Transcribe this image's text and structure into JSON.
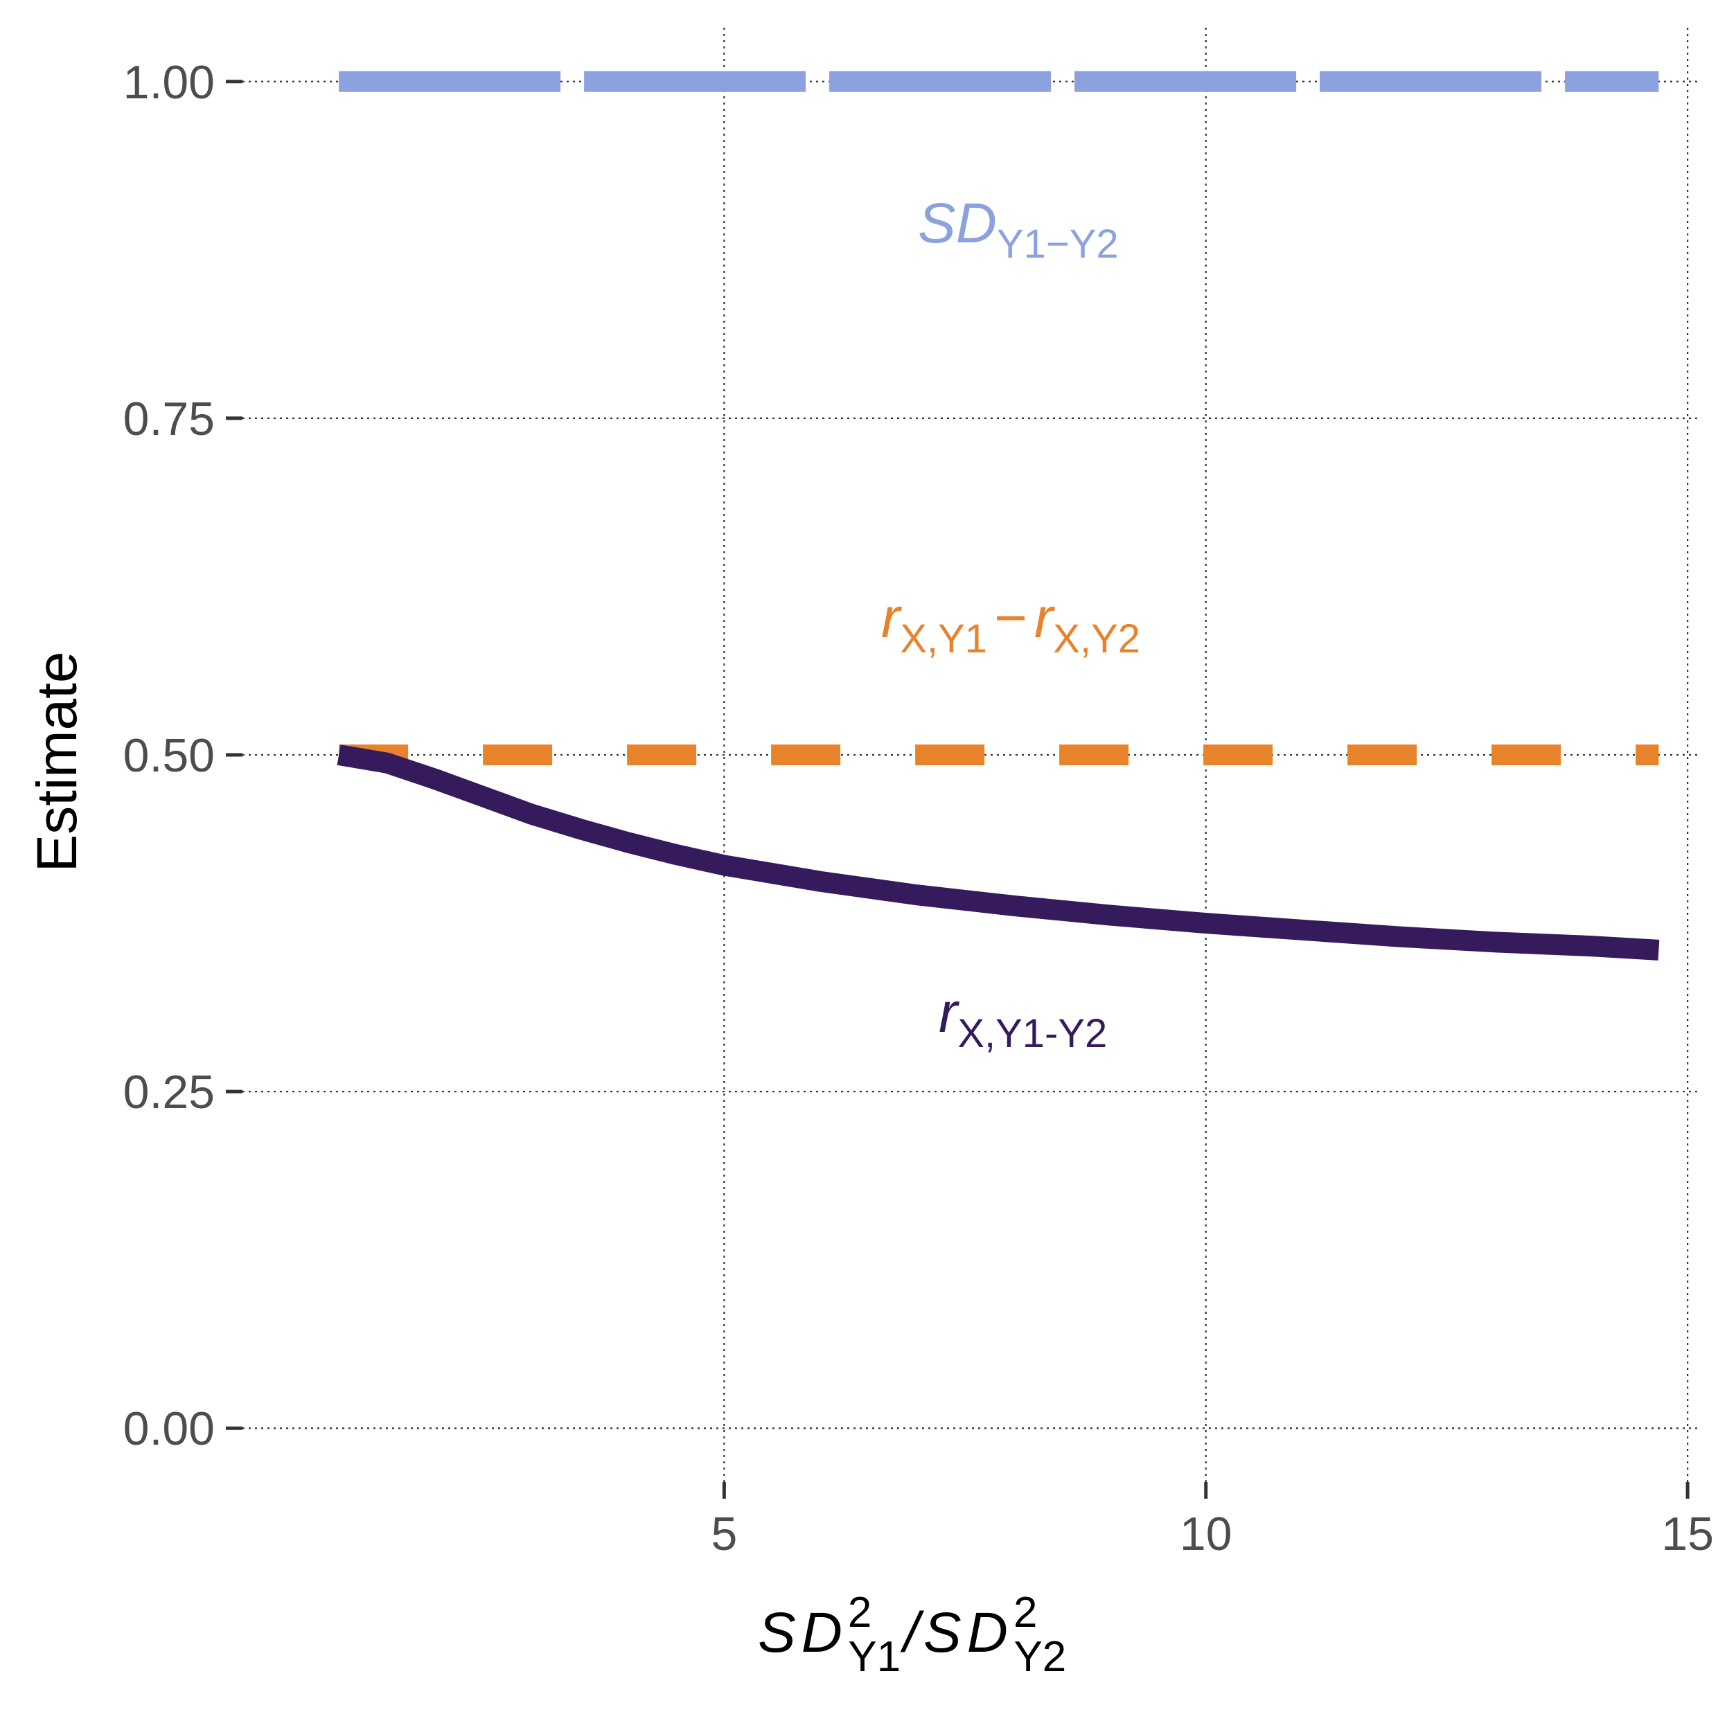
{
  "chart_data": {
    "type": "line",
    "xlabel": {
      "sd1": "SD",
      "sup1": "2",
      "sub1": "Y1",
      "slash": "/",
      "sd2": "SD",
      "sup2": "2",
      "sub2": "Y2"
    },
    "ylabel": "Estimate",
    "xlim": [
      0,
      15.1
    ],
    "ylim": [
      -0.04,
      1.04
    ],
    "x_ticks": [
      5,
      10,
      15
    ],
    "x_tick_labels": [
      "5",
      "10",
      "15"
    ],
    "y_ticks": [
      0,
      0.25,
      0.5,
      0.75,
      1.0
    ],
    "y_tick_labels": [
      "0.00",
      "0.25",
      "0.50",
      "0.75",
      "1.00"
    ],
    "grid": true,
    "legend": "none",
    "series": [
      {
        "id": "sd_diff",
        "color": "#8ba2de",
        "linestyle": "longdash",
        "label": {
          "main": "SD",
          "sub": "Y1−Y2"
        },
        "points": [
          [
            1,
            1.0
          ],
          [
            14.7,
            1.0
          ]
        ]
      },
      {
        "id": "r_diff",
        "color": "#e6832b",
        "linestyle": "dashed",
        "label": {
          "r1": "r",
          "sub1": "X,Y1",
          "minus": "−",
          "r2": "r",
          "sub2": "X,Y2"
        },
        "points": [
          [
            1,
            0.5
          ],
          [
            14.7,
            0.5
          ]
        ]
      },
      {
        "id": "r_change",
        "color": "#351a5c",
        "linestyle": "solid",
        "label": {
          "r": "r",
          "sub": "X,Y1-Y2"
        },
        "points": [
          [
            1,
            0.5
          ],
          [
            1.5,
            0.494
          ],
          [
            2,
            0.482
          ],
          [
            2.5,
            0.469
          ],
          [
            3,
            0.456
          ],
          [
            3.5,
            0.445
          ],
          [
            4,
            0.435
          ],
          [
            4.5,
            0.426
          ],
          [
            5,
            0.418
          ],
          [
            6,
            0.406
          ],
          [
            7,
            0.396
          ],
          [
            8,
            0.388
          ],
          [
            9,
            0.381
          ],
          [
            10,
            0.375
          ],
          [
            11,
            0.37
          ],
          [
            12,
            0.365
          ],
          [
            13,
            0.361
          ],
          [
            14,
            0.358
          ],
          [
            14.7,
            0.355
          ]
        ]
      }
    ]
  }
}
